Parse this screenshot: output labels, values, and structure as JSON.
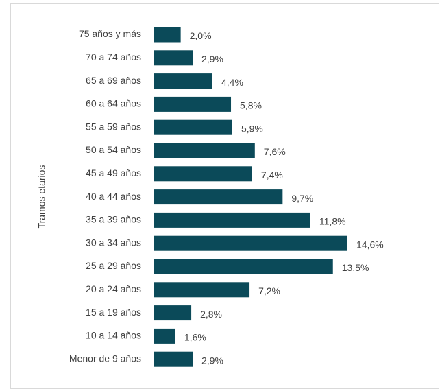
{
  "chart_data": {
    "type": "bar",
    "orientation": "horizontal",
    "y_axis_label": "Tramos etarios",
    "categories": [
      "75 años y más",
      "70 a 74 años",
      "65 a 69 años",
      "60 a 64 años",
      "55 a 59 años",
      "50 a 54 años",
      "45 a 49 años",
      "40 a 44 años",
      "35 a 39 años",
      "30 a 34 años",
      "25 a 29 años",
      "20 a 24 años",
      "15 a 19 años",
      "10 a 14 años",
      "Menor de 9 años"
    ],
    "values": [
      2.0,
      2.9,
      4.4,
      5.8,
      5.9,
      7.6,
      7.4,
      9.7,
      11.8,
      14.6,
      13.5,
      7.2,
      2.8,
      1.6,
      2.9
    ],
    "value_labels": [
      "2,0%",
      "2,9%",
      "4,4%",
      "5,8%",
      "5,9%",
      "7,6%",
      "7,4%",
      "9,7%",
      "11,8%",
      "14,6%",
      "13,5%",
      "7,2%",
      "2,8%",
      "1,6%",
      "2,9%"
    ],
    "color": "#0b4a59"
  }
}
